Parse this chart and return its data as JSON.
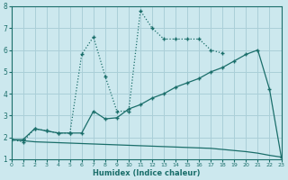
{
  "xlabel": "Humidex (Indice chaleur)",
  "background_color": "#cce8ee",
  "grid_color": "#aacfd8",
  "line_color": "#1a6e6a",
  "xlim": [
    0,
    23
  ],
  "ylim": [
    1,
    8
  ],
  "yticks": [
    1,
    2,
    3,
    4,
    5,
    6,
    7,
    8
  ],
  "xticks": [
    0,
    1,
    2,
    3,
    4,
    5,
    6,
    7,
    8,
    9,
    10,
    11,
    12,
    13,
    14,
    15,
    16,
    17,
    18,
    19,
    20,
    21,
    22,
    23
  ],
  "curve_dotted_x": [
    0,
    1,
    2,
    3,
    4,
    5,
    6,
    7,
    8,
    9,
    10,
    11,
    12,
    13,
    14,
    15,
    16,
    17,
    18
  ],
  "curve_dotted_y": [
    1.9,
    1.8,
    2.4,
    2.3,
    2.2,
    2.2,
    5.8,
    6.6,
    4.8,
    3.2,
    3.2,
    7.8,
    7.0,
    6.5,
    6.5,
    6.5,
    6.5,
    6.0,
    5.85
  ],
  "curve_solid_x": [
    0,
    1,
    2,
    3,
    4,
    5,
    6,
    7,
    8,
    9,
    10,
    11,
    12,
    13,
    14,
    15,
    16,
    17,
    18,
    19,
    20,
    21,
    22,
    23
  ],
  "curve_solid_y": [
    1.9,
    1.9,
    2.4,
    2.3,
    2.2,
    2.2,
    2.2,
    3.2,
    2.85,
    2.9,
    3.3,
    3.5,
    3.8,
    4.0,
    4.3,
    4.5,
    4.7,
    5.0,
    5.2,
    5.5,
    5.8,
    6.0,
    4.2,
    1.1
  ],
  "curve_flat_x": [
    0,
    1,
    2,
    3,
    4,
    5,
    6,
    7,
    8,
    9,
    10,
    11,
    12,
    13,
    14,
    15,
    16,
    17,
    18,
    19,
    20,
    21,
    22,
    23
  ],
  "curve_flat_y": [
    1.9,
    1.85,
    1.8,
    1.78,
    1.76,
    1.74,
    1.72,
    1.7,
    1.68,
    1.66,
    1.64,
    1.62,
    1.6,
    1.58,
    1.56,
    1.54,
    1.52,
    1.5,
    1.45,
    1.4,
    1.35,
    1.28,
    1.18,
    1.1
  ]
}
